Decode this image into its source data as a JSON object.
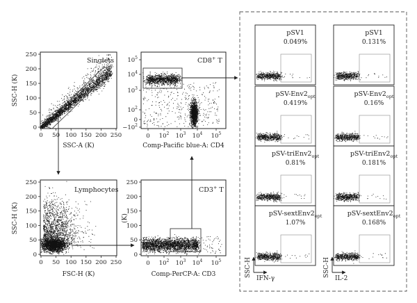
{
  "panels": {
    "singlets": {
      "title": "Singlets",
      "xlabel": "SSC-A (K)",
      "ylabel": "SSC-H (K)",
      "xticks": [
        "0",
        "50",
        "100",
        "150",
        "200",
        "250"
      ],
      "yticks": [
        "0",
        "50",
        "100",
        "150",
        "200",
        "250"
      ]
    },
    "lymphocytes": {
      "title": "Lymphocytes",
      "xlabel": "FSC-H (K)",
      "ylabel": "SSC-H (K)",
      "xticks": [
        "0",
        "50",
        "100",
        "150",
        "200",
        "250"
      ],
      "yticks": [
        "0",
        "50",
        "100",
        "150",
        "200",
        "250"
      ]
    },
    "cd8": {
      "title_main": "CD8",
      "title_sup": "+",
      "title_tail": " T",
      "xlabel": "Comp-Pacific blue-A: CD4",
      "xticks": [
        {
          "base": "0",
          "exp": ""
        },
        {
          "base": "10",
          "exp": "2"
        },
        {
          "base": "10",
          "exp": "3"
        },
        {
          "base": "10",
          "exp": "4"
        },
        {
          "base": "10",
          "exp": "5"
        }
      ],
      "yticks": [
        {
          "base": "10",
          "exp": "5"
        },
        {
          "base": "10",
          "exp": "4"
        },
        {
          "base": "10",
          "exp": "3"
        },
        {
          "base": "10",
          "exp": "2"
        },
        {
          "base": "0",
          "exp": ""
        },
        {
          "base": "−10",
          "exp": "2"
        }
      ]
    },
    "cd3": {
      "title_main": "CD3",
      "title_sup": "+",
      "title_tail": " T",
      "xlabel": "Comp-PerCP-A: CD3",
      "ylabel": "(K)",
      "xticks": [
        {
          "base": "0",
          "exp": ""
        },
        {
          "base": "10",
          "exp": "2"
        },
        {
          "base": "10",
          "exp": "3"
        },
        {
          "base": "10",
          "exp": "4"
        },
        {
          "base": "10",
          "exp": "5"
        }
      ],
      "yticks": [
        "0",
        "50",
        "100",
        "150",
        "200",
        "250"
      ]
    }
  },
  "grid": {
    "ifn_axis_x": "IFN-γ",
    "il2_axis_x": "IL-2",
    "axis_y": "SSC-H",
    "rows": [
      {
        "base": "pSV1",
        "sub": "",
        "ifn": "0.049%",
        "il2": "0.131%"
      },
      {
        "base": "pSV-Env2",
        "sub": "opt",
        "ifn": "0.419%",
        "il2": "0.16%"
      },
      {
        "base": "pSV-triEnv2",
        "sub": "opt",
        "ifn": "0.81%",
        "il2": "0.181%"
      },
      {
        "base": "pSV-sextEnv2",
        "sub": "opt",
        "ifn": "1.07%",
        "il2": "0.168%"
      }
    ]
  }
}
